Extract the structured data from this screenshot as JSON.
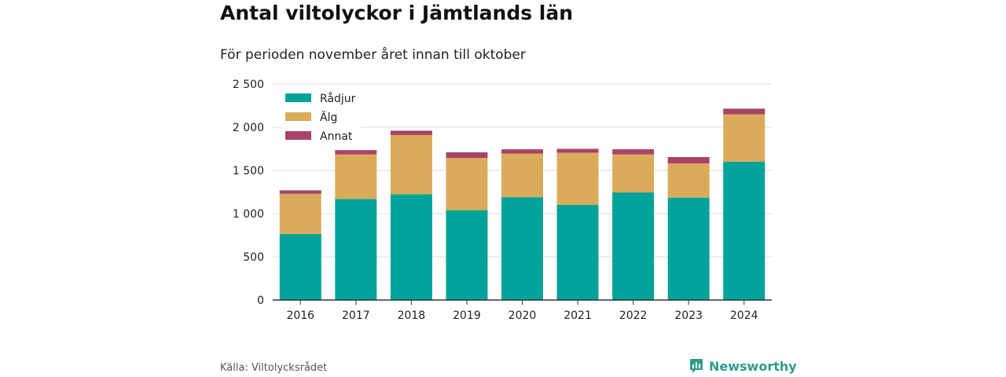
{
  "header": {
    "title": "Antal viltolyckor i Jämtlands län",
    "subtitle": "För perioden november året innan till oktober"
  },
  "footer": {
    "source": "Källa: Viltolycksrådet",
    "brand": "Newsworthy",
    "brand_icon": "newsworthy-logo-icon"
  },
  "colors": {
    "Rådjur": "#00a39a",
    "Älg": "#d9ab5b",
    "Annat": "#a8436a",
    "grid": "#dddddd",
    "axis": "#333333",
    "brand": "#2e9c8f"
  },
  "chart_data": {
    "type": "bar",
    "stacked": true,
    "categories": [
      "2016",
      "2017",
      "2018",
      "2019",
      "2020",
      "2021",
      "2022",
      "2023",
      "2024"
    ],
    "series": [
      {
        "name": "Rådjur",
        "values": [
          765,
          1170,
          1225,
          1040,
          1190,
          1100,
          1245,
          1185,
          1600
        ]
      },
      {
        "name": "Älg",
        "values": [
          465,
          515,
          685,
          605,
          505,
          605,
          440,
          395,
          550
        ]
      },
      {
        "name": "Annat",
        "values": [
          40,
          50,
          50,
          65,
          50,
          45,
          60,
          75,
          65
        ]
      }
    ],
    "ylim": [
      0,
      2500
    ],
    "yticks": [
      0,
      500,
      1000,
      1500,
      2000,
      2500
    ],
    "ytick_labels": [
      "0",
      "500",
      "1 000",
      "1 500",
      "2 000",
      "2 500"
    ],
    "grid": true,
    "legend_position": "top-left",
    "xlabel": "",
    "ylabel": ""
  }
}
